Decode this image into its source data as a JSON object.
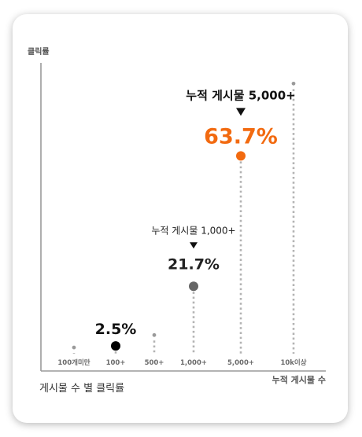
{
  "chart_data": {
    "type": "scatter",
    "ylabel": "클릭률",
    "xlabel": "누적 게시물 수",
    "caption": "게시물 수 별 클릭률",
    "categories": [
      "100개미만",
      "100+",
      "500+",
      "1,000+",
      "5,000+",
      "10k이상"
    ],
    "ylim": [
      0,
      100
    ],
    "points": [
      {
        "category": "100개미만",
        "value": 2.0,
        "label": "",
        "highlight": false
      },
      {
        "category": "100+",
        "value": 2.5,
        "label": "2.5%",
        "highlight": true,
        "color": "#000000"
      },
      {
        "category": "500+",
        "value": 6.0,
        "label": "",
        "highlight": false
      },
      {
        "category": "1,000+",
        "value": 21.7,
        "label": "21.7%",
        "highlight": true,
        "color": "#666666"
      },
      {
        "category": "5,000+",
        "value": 63.7,
        "label": "63.7%",
        "highlight": true,
        "color": "#f26a10"
      },
      {
        "category": "10k이상",
        "value": 87.0,
        "label": "",
        "highlight": false
      }
    ],
    "annotations": [
      {
        "category": "1,000+",
        "text": "누적 게시물 1,000+"
      },
      {
        "category": "5,000+",
        "text": "누적 게시물 5,000+"
      }
    ],
    "grid": false
  }
}
